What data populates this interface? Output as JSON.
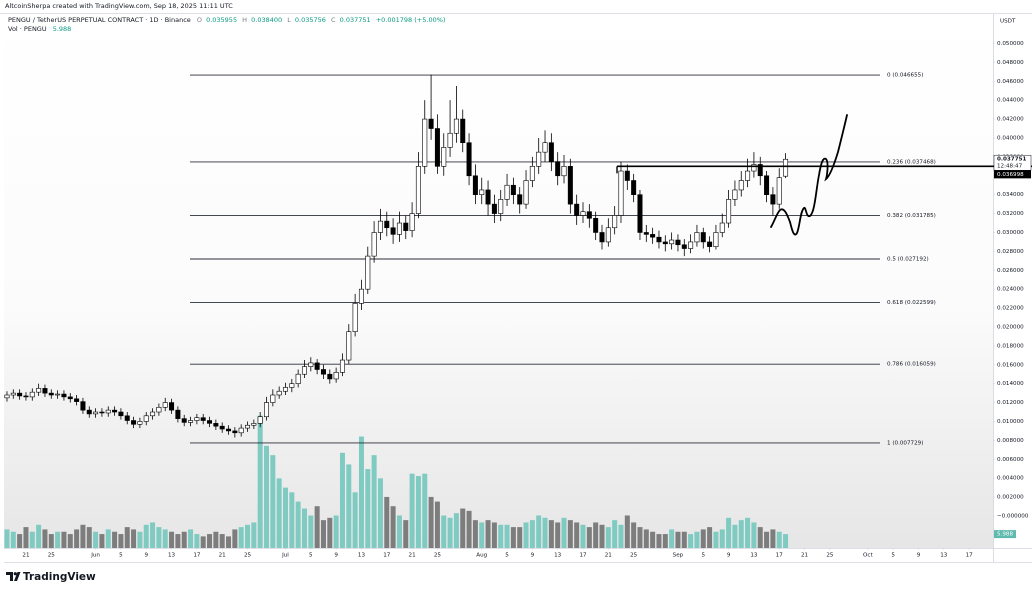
{
  "header": {
    "credit": "AltcoinSherpa created with TradingView.com, Sep 18, 2025 11:11 UTC",
    "symbol": "PENGU / TetherUS PERPETUAL CONTRACT · 1D · Binance",
    "ohlc": [
      {
        "key": "O",
        "value": "0.035955"
      },
      {
        "key": "H",
        "value": "0.038400"
      },
      {
        "key": "L",
        "value": "0.035756"
      },
      {
        "key": "C",
        "value": "0.037751"
      }
    ],
    "change": "+0.001798 (+5.00%)",
    "volume_name": "Vol · PENGU",
    "volume_value": "5.988"
  },
  "footer": {
    "brand": "TradingView"
  },
  "chart_data": {
    "type": "candlestick",
    "y_unit": "USDT",
    "xlim": [
      -0.47,
      155.77
    ],
    "ylim": [
      -0.00339,
      0.05312
    ],
    "volume_lim": [
      0,
      230
    ],
    "grid": false,
    "colors": {
      "up_body": "#ffffff",
      "down_body": "#000000",
      "wick": "#000000",
      "up_volume": "#7fcbc2",
      "down_volume": "#7d7d7d",
      "fib": "#2a2e39",
      "volume_tag": "#5fb9ae"
    },
    "xticks": [
      {
        "value": 3,
        "label": "21"
      },
      {
        "value": 7,
        "label": "25"
      },
      {
        "value": 14,
        "label": "Jun"
      },
      {
        "value": 18,
        "label": "5"
      },
      {
        "value": 22,
        "label": "9"
      },
      {
        "value": 26,
        "label": "13"
      },
      {
        "value": 30,
        "label": "17"
      },
      {
        "value": 34,
        "label": "21"
      },
      {
        "value": 38,
        "label": "25"
      },
      {
        "value": 44,
        "label": "Jul"
      },
      {
        "value": 48,
        "label": "5"
      },
      {
        "value": 52,
        "label": "9"
      },
      {
        "value": 56,
        "label": "13"
      },
      {
        "value": 60,
        "label": "17"
      },
      {
        "value": 64,
        "label": "21"
      },
      {
        "value": 68,
        "label": "25"
      },
      {
        "value": 75,
        "label": "Aug"
      },
      {
        "value": 79,
        "label": "5"
      },
      {
        "value": 83,
        "label": "9"
      },
      {
        "value": 87,
        "label": "13"
      },
      {
        "value": 91,
        "label": "17"
      },
      {
        "value": 95,
        "label": "21"
      },
      {
        "value": 99,
        "label": "25"
      },
      {
        "value": 106,
        "label": "Sep"
      },
      {
        "value": 110,
        "label": "5"
      },
      {
        "value": 114,
        "label": "9"
      },
      {
        "value": 118,
        "label": "13"
      },
      {
        "value": 122,
        "label": "17"
      },
      {
        "value": 126,
        "label": "21"
      },
      {
        "value": 130,
        "label": "25"
      },
      {
        "value": 136,
        "label": "Oct"
      },
      {
        "value": 140,
        "label": "5"
      },
      {
        "value": 144,
        "label": "9"
      },
      {
        "value": 148,
        "label": "13"
      },
      {
        "value": 152,
        "label": "17"
      }
    ],
    "yticks": [
      {
        "value": 0.05,
        "label": "0.050000"
      },
      {
        "value": 0.048,
        "label": "0.048000"
      },
      {
        "value": 0.046,
        "label": "0.046000"
      },
      {
        "value": 0.044,
        "label": "0.044000"
      },
      {
        "value": 0.042,
        "label": "0.042000"
      },
      {
        "value": 0.04,
        "label": "0.040000"
      },
      {
        "value": 0.038,
        "label": "0.038000"
      },
      {
        "value": 0.034,
        "label": "0.034000"
      },
      {
        "value": 0.032,
        "label": "0.032000"
      },
      {
        "value": 0.03,
        "label": "0.030000"
      },
      {
        "value": 0.028,
        "label": "0.028000"
      },
      {
        "value": 0.026,
        "label": "0.026000"
      },
      {
        "value": 0.024,
        "label": "0.024000"
      },
      {
        "value": 0.022,
        "label": "0.022000"
      },
      {
        "value": 0.02,
        "label": "0.020000"
      },
      {
        "value": 0.018,
        "label": "0.018000"
      },
      {
        "value": 0.016,
        "label": "0.016000"
      },
      {
        "value": 0.014,
        "label": "0.014000"
      },
      {
        "value": 0.012,
        "label": "0.012000"
      },
      {
        "value": 0.01,
        "label": "0.010000"
      },
      {
        "value": 0.008,
        "label": "0.008000"
      },
      {
        "value": 0.006,
        "label": "0.006000"
      },
      {
        "value": 0.004,
        "label": "0.004000"
      },
      {
        "value": 0.002,
        "label": "0.002000"
      },
      {
        "value": 0,
        "label": "−0.000000"
      }
    ],
    "fib_levels": [
      {
        "value": 0.046655,
        "label": "0 (0.046655)"
      },
      {
        "value": 0.037468,
        "label": "0.236 (0.037468)"
      },
      {
        "value": 0.031785,
        "label": "0.382 (0.031785)"
      },
      {
        "value": 0.027192,
        "label": "0.5 (0.027192)"
      },
      {
        "value": 0.022599,
        "label": "0.618 (0.022599)"
      },
      {
        "value": 0.016059,
        "label": "0.786 (0.016059)"
      },
      {
        "value": 0.007729,
        "label": "1 (0.007729)"
      }
    ],
    "last_price": {
      "value": 0.037751,
      "label": "0.037751"
    },
    "countdown": "12:48:47",
    "horizontal_line": {
      "value": 0.036998,
      "label": "0.036998"
    },
    "volume_tag": {
      "value": 5.988,
      "label": "5.988"
    },
    "ohlc": [
      [
        0.0125,
        0.0132,
        0.0121,
        0.0128
      ],
      [
        0.0128,
        0.0134,
        0.0124,
        0.013
      ],
      [
        0.013,
        0.0134,
        0.0123,
        0.0127
      ],
      [
        0.0127,
        0.0131,
        0.0122,
        0.0126
      ],
      [
        0.0126,
        0.0135,
        0.0122,
        0.0131
      ],
      [
        0.0131,
        0.014,
        0.0127,
        0.0135
      ],
      [
        0.0135,
        0.0139,
        0.0126,
        0.013
      ],
      [
        0.013,
        0.0134,
        0.0124,
        0.0128
      ],
      [
        0.0128,
        0.0133,
        0.0124,
        0.0129
      ],
      [
        0.0129,
        0.0133,
        0.0122,
        0.0126
      ],
      [
        0.0126,
        0.013,
        0.012,
        0.0124
      ],
      [
        0.0124,
        0.0128,
        0.0117,
        0.0121
      ],
      [
        0.0121,
        0.0125,
        0.0108,
        0.0112
      ],
      [
        0.0112,
        0.0116,
        0.0104,
        0.0108
      ],
      [
        0.0108,
        0.0114,
        0.0104,
        0.011
      ],
      [
        0.011,
        0.0114,
        0.0105,
        0.0109
      ],
      [
        0.0109,
        0.0116,
        0.0105,
        0.0112
      ],
      [
        0.0112,
        0.0116,
        0.0106,
        0.011
      ],
      [
        0.011,
        0.0114,
        0.0102,
        0.0106
      ],
      [
        0.0106,
        0.011,
        0.0097,
        0.0101
      ],
      [
        0.0101,
        0.0105,
        0.0093,
        0.0097
      ],
      [
        0.0097,
        0.0104,
        0.0093,
        0.01
      ],
      [
        0.01,
        0.011,
        0.0096,
        0.0106
      ],
      [
        0.0106,
        0.0114,
        0.0102,
        0.011
      ],
      [
        0.011,
        0.0119,
        0.0106,
        0.0115
      ],
      [
        0.0115,
        0.0125,
        0.0111,
        0.012
      ],
      [
        0.012,
        0.0124,
        0.0108,
        0.0112
      ],
      [
        0.0112,
        0.0116,
        0.0099,
        0.0103
      ],
      [
        0.0103,
        0.0107,
        0.0095,
        0.0099
      ],
      [
        0.0099,
        0.0105,
        0.0095,
        0.0101
      ],
      [
        0.0101,
        0.0108,
        0.0097,
        0.0104
      ],
      [
        0.0104,
        0.0108,
        0.0097,
        0.0101
      ],
      [
        0.0101,
        0.0105,
        0.0094,
        0.0098
      ],
      [
        0.0098,
        0.0102,
        0.0091,
        0.0095
      ],
      [
        0.0095,
        0.0099,
        0.0088,
        0.0092
      ],
      [
        0.0092,
        0.0096,
        0.0086,
        0.009
      ],
      [
        0.009,
        0.0094,
        0.0083,
        0.0088
      ],
      [
        0.0088,
        0.0097,
        0.0084,
        0.0093
      ],
      [
        0.0093,
        0.01,
        0.0089,
        0.0096
      ],
      [
        0.0096,
        0.0102,
        0.0092,
        0.0098
      ],
      [
        0.0098,
        0.011,
        0.0094,
        0.0105
      ],
      [
        0.0105,
        0.0126,
        0.0101,
        0.012
      ],
      [
        0.012,
        0.0134,
        0.0116,
        0.0128
      ],
      [
        0.0128,
        0.0137,
        0.0124,
        0.0132
      ],
      [
        0.0132,
        0.0141,
        0.0128,
        0.0136
      ],
      [
        0.0136,
        0.0145,
        0.0131,
        0.014
      ],
      [
        0.014,
        0.0155,
        0.0136,
        0.015
      ],
      [
        0.015,
        0.0165,
        0.0146,
        0.0158
      ],
      [
        0.0158,
        0.0168,
        0.0153,
        0.0162
      ],
      [
        0.0162,
        0.0166,
        0.015,
        0.0155
      ],
      [
        0.0155,
        0.016,
        0.0145,
        0.015
      ],
      [
        0.015,
        0.0155,
        0.014,
        0.0145
      ],
      [
        0.0145,
        0.0157,
        0.0141,
        0.0152
      ],
      [
        0.0152,
        0.0172,
        0.0148,
        0.0165
      ],
      [
        0.0165,
        0.0203,
        0.0161,
        0.0195
      ],
      [
        0.0195,
        0.0235,
        0.019,
        0.0225
      ],
      [
        0.0225,
        0.025,
        0.0218,
        0.024
      ],
      [
        0.024,
        0.0285,
        0.0235,
        0.0275
      ],
      [
        0.0275,
        0.0312,
        0.0268,
        0.03
      ],
      [
        0.03,
        0.0325,
        0.0292,
        0.0312
      ],
      [
        0.0312,
        0.0322,
        0.0296,
        0.0305
      ],
      [
        0.0305,
        0.0315,
        0.0288,
        0.0298
      ],
      [
        0.0298,
        0.0322,
        0.029,
        0.031
      ],
      [
        0.031,
        0.0318,
        0.0293,
        0.0302
      ],
      [
        0.0302,
        0.0332,
        0.0295,
        0.032
      ],
      [
        0.032,
        0.0385,
        0.0315,
        0.037
      ],
      [
        0.037,
        0.044,
        0.0362,
        0.042
      ],
      [
        0.042,
        0.0467,
        0.0398,
        0.041
      ],
      [
        0.041,
        0.0425,
        0.0362,
        0.037
      ],
      [
        0.037,
        0.0405,
        0.036,
        0.039
      ],
      [
        0.039,
        0.044,
        0.038,
        0.0405
      ],
      [
        0.0405,
        0.0455,
        0.0395,
        0.042
      ],
      [
        0.042,
        0.043,
        0.0385,
        0.0395
      ],
      [
        0.0395,
        0.0405,
        0.035,
        0.036
      ],
      [
        0.036,
        0.0372,
        0.033,
        0.034
      ],
      [
        0.034,
        0.0358,
        0.033,
        0.0345
      ],
      [
        0.0345,
        0.0355,
        0.0318,
        0.033
      ],
      [
        0.033,
        0.034,
        0.031,
        0.032
      ],
      [
        0.032,
        0.0345,
        0.0312,
        0.0335
      ],
      [
        0.0335,
        0.0362,
        0.0328,
        0.035
      ],
      [
        0.035,
        0.0358,
        0.033,
        0.034
      ],
      [
        0.034,
        0.0348,
        0.032,
        0.033
      ],
      [
        0.033,
        0.0366,
        0.0325,
        0.0355
      ],
      [
        0.0355,
        0.038,
        0.0348,
        0.037
      ],
      [
        0.037,
        0.04,
        0.0362,
        0.0385
      ],
      [
        0.0385,
        0.0408,
        0.0375,
        0.0395
      ],
      [
        0.0395,
        0.0405,
        0.0365,
        0.0375
      ],
      [
        0.0375,
        0.0385,
        0.035,
        0.036
      ],
      [
        0.036,
        0.0382,
        0.0352,
        0.037
      ],
      [
        0.037,
        0.0378,
        0.032,
        0.033
      ],
      [
        0.033,
        0.034,
        0.0308,
        0.0318
      ],
      [
        0.0318,
        0.0332,
        0.031,
        0.0322
      ],
      [
        0.0322,
        0.033,
        0.0305,
        0.0315
      ],
      [
        0.0315,
        0.0322,
        0.0292,
        0.03
      ],
      [
        0.03,
        0.0308,
        0.0282,
        0.029
      ],
      [
        0.029,
        0.0315,
        0.0285,
        0.0305
      ],
      [
        0.0305,
        0.0328,
        0.0298,
        0.0318
      ],
      [
        0.0318,
        0.0375,
        0.031,
        0.0365
      ],
      [
        0.0365,
        0.0372,
        0.0345,
        0.0355
      ],
      [
        0.0355,
        0.0362,
        0.0332,
        0.034
      ],
      [
        0.034,
        0.0345,
        0.0292,
        0.03
      ],
      [
        0.03,
        0.0308,
        0.029,
        0.0298
      ],
      [
        0.0298,
        0.0305,
        0.0288,
        0.0295
      ],
      [
        0.0295,
        0.0302,
        0.0283,
        0.029
      ],
      [
        0.029,
        0.0297,
        0.028,
        0.0288
      ],
      [
        0.0288,
        0.03,
        0.0282,
        0.0292
      ],
      [
        0.0292,
        0.0298,
        0.028,
        0.0287
      ],
      [
        0.0287,
        0.0293,
        0.0275,
        0.0283
      ],
      [
        0.0283,
        0.0298,
        0.0278,
        0.029
      ],
      [
        0.029,
        0.0308,
        0.0285,
        0.03
      ],
      [
        0.03,
        0.0305,
        0.0283,
        0.029
      ],
      [
        0.029,
        0.0296,
        0.0279,
        0.0285
      ],
      [
        0.0285,
        0.0308,
        0.0282,
        0.03
      ],
      [
        0.03,
        0.032,
        0.0295,
        0.031
      ],
      [
        0.031,
        0.0345,
        0.0305,
        0.0335
      ],
      [
        0.0335,
        0.0355,
        0.0328,
        0.0345
      ],
      [
        0.0345,
        0.0365,
        0.0338,
        0.0355
      ],
      [
        0.0355,
        0.0378,
        0.0348,
        0.0365
      ],
      [
        0.0365,
        0.0385,
        0.0358,
        0.0372
      ],
      [
        0.0372,
        0.038,
        0.035,
        0.036
      ],
      [
        0.036,
        0.0365,
        0.0332,
        0.034
      ],
      [
        0.034,
        0.0348,
        0.0318,
        0.033
      ],
      [
        0.033,
        0.0368,
        0.0325,
        0.0358
      ],
      [
        0.035955,
        0.0384,
        0.035756,
        0.037751
      ]
    ],
    "volume": [
      8,
      7,
      6,
      9,
      7,
      10,
      8,
      6,
      7,
      7,
      6,
      8,
      10,
      9,
      7,
      6,
      8,
      7,
      6,
      9,
      8,
      7,
      10,
      11,
      9,
      8,
      7,
      6,
      7,
      8,
      6,
      5,
      6,
      7,
      6,
      5,
      8,
      9,
      10,
      11,
      57,
      44,
      40,
      30,
      26,
      24,
      20,
      17,
      14,
      18,
      12,
      13,
      14,
      41,
      36,
      24,
      48,
      34,
      40,
      30,
      22,
      18,
      14,
      12,
      32,
      31,
      32,
      22,
      20,
      14,
      13,
      15,
      17,
      16,
      12,
      11,
      12,
      11,
      10,
      10,
      9,
      9,
      11,
      12,
      14,
      13,
      12,
      11,
      13,
      12,
      11,
      10,
      9,
      11,
      10,
      9,
      12,
      10,
      14,
      11,
      9,
      8,
      7,
      6,
      6,
      8,
      7,
      7,
      6,
      7,
      8,
      9,
      7,
      8,
      13,
      10,
      12,
      13,
      11,
      9,
      7,
      8,
      7,
      5.988
    ]
  }
}
